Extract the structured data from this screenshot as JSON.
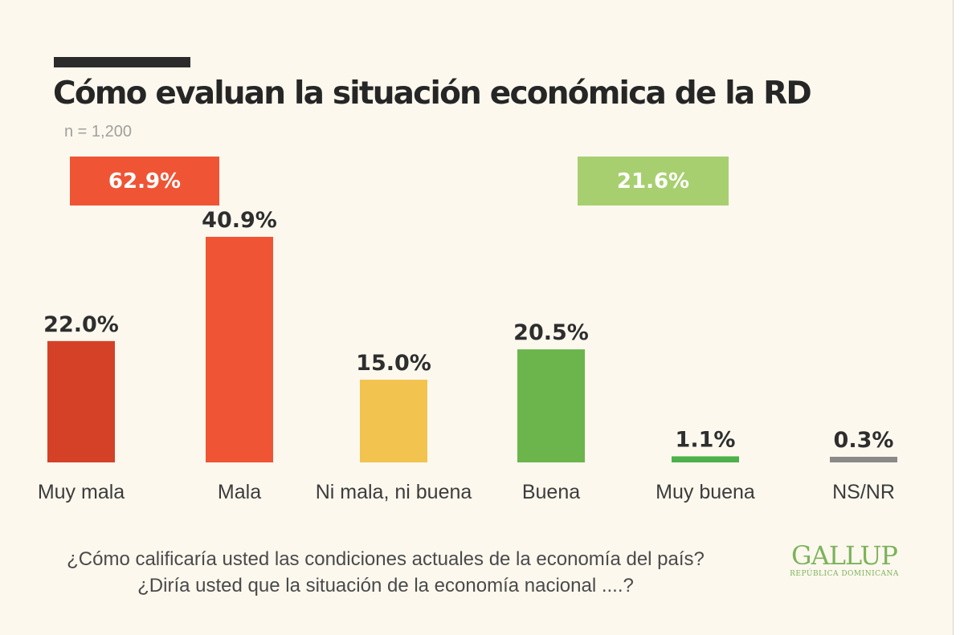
{
  "header": {
    "title": "Cómo evaluan la situación económica de la RD",
    "sample": "n = 1,200"
  },
  "groups": {
    "negative": {
      "label": "62.9%",
      "color": "#ef5535"
    },
    "positive": {
      "label": "21.6%",
      "color": "#a7cf6f"
    }
  },
  "chart_data": {
    "type": "bar",
    "categories": [
      "Muy mala",
      "Mala",
      "Ni mala, ni buena",
      "Buena",
      "Muy buena",
      "NS/NR"
    ],
    "values": [
      22.0,
      40.9,
      15.0,
      20.5,
      1.1,
      0.3
    ],
    "value_labels": [
      "22.0%",
      "40.9%",
      "15.0%",
      "20.5%",
      "1.1%",
      "0.3%"
    ],
    "colors": [
      "#d54127",
      "#ef5535",
      "#f2c34f",
      "#6bb54c",
      "#4db04a",
      "#8a8a8a"
    ],
    "ylim": [
      0,
      40.9
    ],
    "grid": false,
    "title": "Cómo evaluan la situación económica de la RD",
    "xlabel": "",
    "ylabel": ""
  },
  "question": {
    "line1": "¿Cómo calificaría usted las condiciones actuales de la economía del país?",
    "line2": "¿Diría usted que la situación de la economía nacional ....?"
  },
  "logo": {
    "name": "GALLUP",
    "subtitle": "República Dominicana",
    "color": "#7cb35a"
  }
}
